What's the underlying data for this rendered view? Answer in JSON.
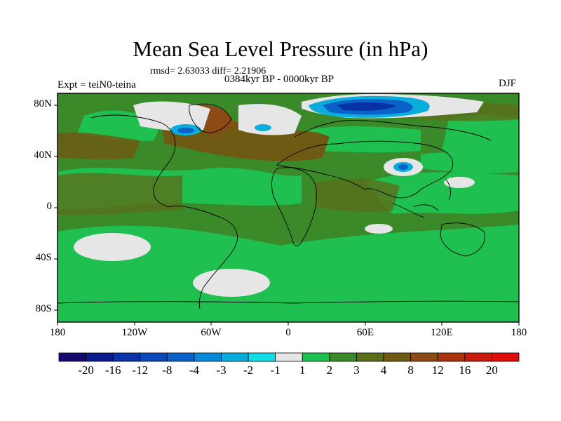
{
  "title": "Mean Sea Level Pressure (in hPa)",
  "stats_text": "rmsd= 2.63033 diff= 2.21906",
  "period": "0384kyr BP - 0000kyr BP",
  "experiment": "Expt = teiN0-teina",
  "season": "DJF",
  "y_axis_labels": [
    "80N",
    "40N",
    "0",
    "40S",
    "80S"
  ],
  "x_axis_labels": [
    "180",
    "120W",
    "60W",
    "0",
    "60E",
    "120E",
    "180"
  ],
  "colorbar": {
    "labels": [
      "-20",
      "-16",
      "-12",
      "-8",
      "-4",
      "-3",
      "-2",
      "-1",
      "1",
      "2",
      "3",
      "4",
      "8",
      "12",
      "16",
      "20"
    ],
    "colors": [
      "#140a6e",
      "#0a1a8c",
      "#0a32a8",
      "#0a4ab8",
      "#0a62c8",
      "#0a88d8",
      "#0aacdc",
      "#12dce4",
      "#e6e6e6",
      "#20c050",
      "#3a8a2a",
      "#5a6e1a",
      "#6e5a12",
      "#8c4a14",
      "#a8340c",
      "#c81c0a",
      "#e00c0a"
    ]
  }
}
